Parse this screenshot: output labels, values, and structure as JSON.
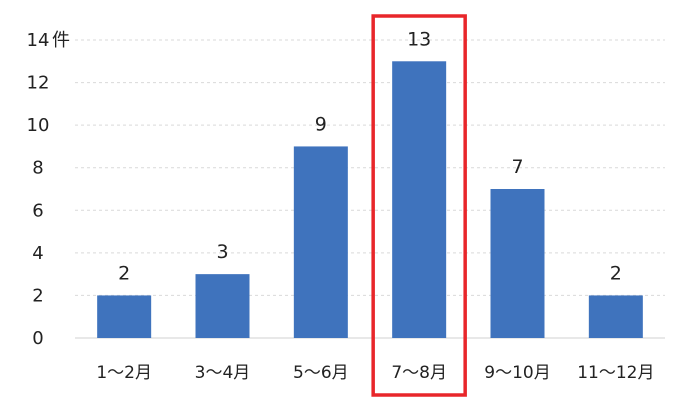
{
  "chart_data": {
    "type": "bar",
    "categories": [
      "1～2月",
      "3～4月",
      "5～6月",
      "7～8月",
      "9～10月",
      "11～12月"
    ],
    "values": [
      2,
      3,
      9,
      13,
      7,
      2
    ],
    "ylim": [
      0,
      14
    ],
    "yticks": [
      0,
      2,
      4,
      6,
      8,
      10,
      12,
      14
    ],
    "y_unit": "件",
    "grid": true,
    "highlighted_category": "7～8月",
    "colors": {
      "bar": "#3f73bd",
      "highlight_box": "#e8262a",
      "grid": "#d9d9d9"
    }
  }
}
